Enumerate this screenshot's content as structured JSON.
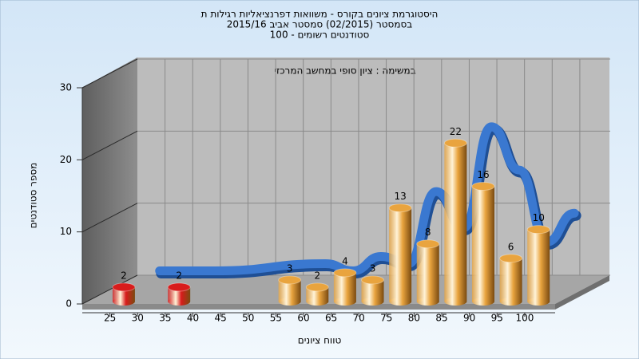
{
  "chart_data": {
    "type": "bar3d",
    "title": "היסטוגרמת ציונים בקורס - משוואות דפרנציאליות רגילות ת",
    "subtitle": "בסמסטר (02/2015) סמסטר אביב 2015/16",
    "subtitle2": "סטודנטים רשומים - 100",
    "annotation": "במשימה : ציון סופי במחשב המרכזי",
    "xlabel": "טווח ציונים",
    "ylabel": "מספר סטודנטים",
    "x": [
      27.5,
      37.5,
      57.5,
      62.5,
      67.5,
      72.5,
      77.5,
      82.5,
      87.5,
      92.5,
      97.5,
      102.5
    ],
    "values": [
      2,
      2,
      3,
      2,
      4,
      3,
      13,
      8,
      22,
      16,
      6,
      10
    ],
    "colors": [
      "#d81c1c",
      "#d81c1c",
      "#e9a43e",
      "#e9a43e",
      "#e9a43e",
      "#e9a43e",
      "#e9a43e",
      "#e9a43e",
      "#e9a43e",
      "#e9a43e",
      "#e9a43e",
      "#e9a43e"
    ],
    "line_color": "#3a78d0",
    "xlim": [
      20,
      105.5
    ],
    "xticks": [
      25,
      30,
      35,
      40,
      45,
      50,
      55,
      60,
      65,
      70,
      75,
      80,
      85,
      90,
      95,
      100
    ],
    "ylim": [
      0,
      30
    ],
    "yticks": [
      0,
      10,
      20,
      30
    ],
    "grid": true
  }
}
